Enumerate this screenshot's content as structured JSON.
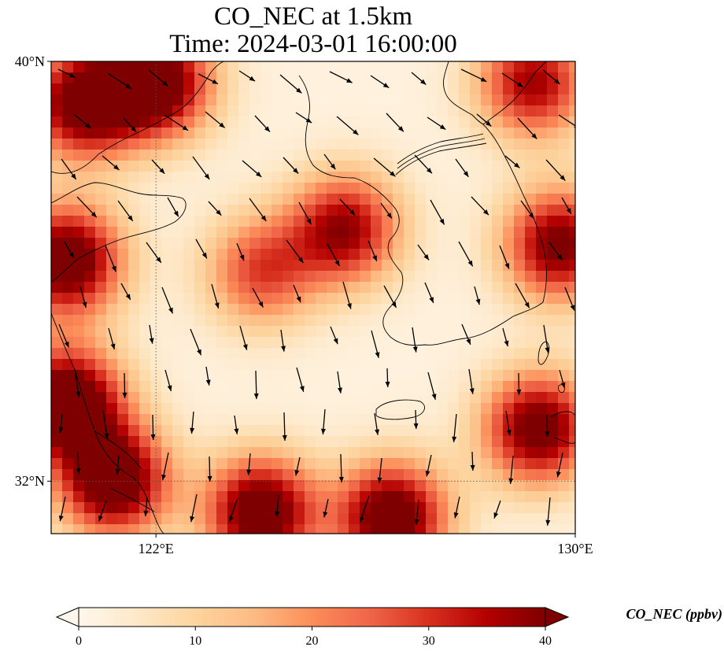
{
  "title": {
    "line1": "CO_NEC at 1.5km",
    "line2": "Time: 2024-03-01 16:00:00"
  },
  "map": {
    "projection": "lat-lon",
    "lon_range": [
      120,
      130
    ],
    "lat_range": [
      31,
      40
    ],
    "gridlines": "dotted",
    "colormap": "OrRd",
    "land_sea_outline_color": "#000000",
    "axis_ticks": {
      "lat": [
        {
          "value": 40,
          "label": "40°N"
        },
        {
          "value": 32,
          "label": "32°N"
        }
      ],
      "lon": [
        {
          "value": 122,
          "label": "122°E"
        },
        {
          "value": 130,
          "label": "130°E"
        }
      ]
    },
    "field_hotspots": [
      {
        "lon": 120.6,
        "lat": 39.2,
        "value": 42
      },
      {
        "lon": 122.0,
        "lat": 39.6,
        "value": 45
      },
      {
        "lon": 120.3,
        "lat": 36.2,
        "value": 45
      },
      {
        "lon": 120.3,
        "lat": 33.5,
        "value": 48
      },
      {
        "lon": 121.2,
        "lat": 32.0,
        "value": 45
      },
      {
        "lon": 124.0,
        "lat": 31.4,
        "value": 45
      },
      {
        "lon": 126.5,
        "lat": 31.3,
        "value": 45
      },
      {
        "lon": 129.3,
        "lat": 33.0,
        "value": 42
      },
      {
        "lon": 129.7,
        "lat": 36.5,
        "value": 40
      },
      {
        "lon": 129.2,
        "lat": 39.6,
        "value": 35
      },
      {
        "lon": 125.6,
        "lat": 36.8,
        "value": 36
      },
      {
        "lon": 124.0,
        "lat": 36.0,
        "value": 26
      }
    ]
  },
  "colorbar": {
    "label": "CO_NEC (ppbv)",
    "min": 0,
    "max": 40,
    "extend": "both",
    "ticks": [
      "0",
      "10",
      "20",
      "30",
      "40"
    ]
  }
}
